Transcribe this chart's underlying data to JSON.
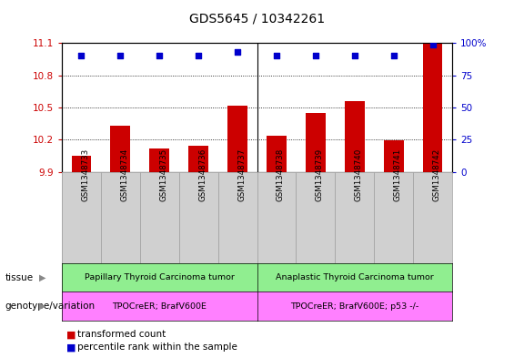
{
  "title": "GDS5645 / 10342261",
  "samples": [
    "GSM1348733",
    "GSM1348734",
    "GSM1348735",
    "GSM1348736",
    "GSM1348737",
    "GSM1348738",
    "GSM1348739",
    "GSM1348740",
    "GSM1348741",
    "GSM1348742"
  ],
  "transformed_counts": [
    10.05,
    10.33,
    10.12,
    10.14,
    10.52,
    10.24,
    10.45,
    10.56,
    10.19,
    11.1
  ],
  "percentile_ranks": [
    90,
    90,
    90,
    90,
    93,
    90,
    90,
    90,
    90,
    99
  ],
  "ylim_left": [
    9.9,
    11.1
  ],
  "ylim_right": [
    0,
    100
  ],
  "yticks_left": [
    9.9,
    10.2,
    10.5,
    10.8,
    11.1
  ],
  "yticks_right": [
    0,
    25,
    50,
    75,
    100
  ],
  "bar_color": "#cc0000",
  "dot_color": "#0000cc",
  "tissue_group1": "Papillary Thyroid Carcinoma tumor",
  "tissue_group2": "Anaplastic Thyroid Carcinoma tumor",
  "tissue_color": "#90EE90",
  "genotype_group1": "TPOCreER; BrafV600E",
  "genotype_group2": "TPOCreER; BrafV600E; p53 -/-",
  "genotype_color": "#FF80FF",
  "tissue_label": "tissue",
  "genotype_label": "genotype/variation",
  "legend_bar_label": "transformed count",
  "legend_dot_label": "percentile rank within the sample",
  "group1_count": 5,
  "group2_count": 5,
  "xlabel_box_color": "#d0d0d0",
  "xlabel_box_border": "#999999"
}
